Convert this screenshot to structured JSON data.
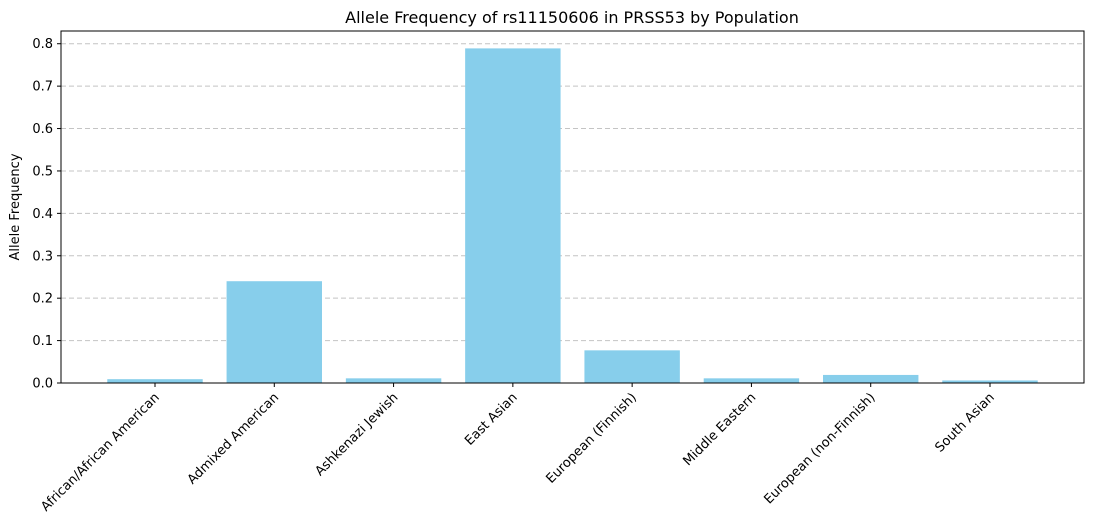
{
  "chart_data": {
    "type": "bar",
    "title": "Allele Frequency of rs11150606 in PRSS53 by Population",
    "xlabel": "",
    "ylabel": "Allele Frequency",
    "categories": [
      "African/African American",
      "Admixed American",
      "Ashkenazi Jewish",
      "East Asian",
      "European (Finnish)",
      "Middle Eastern",
      "European (non-Finnish)",
      "South Asian"
    ],
    "values": [
      0.009,
      0.24,
      0.011,
      0.789,
      0.077,
      0.011,
      0.019,
      0.006
    ],
    "ylim": [
      0,
      0.83
    ],
    "yticks": [
      0.0,
      0.1,
      0.2,
      0.3,
      0.4,
      0.5,
      0.6,
      0.7,
      0.8
    ],
    "ytick_labels": [
      "0.0",
      "0.1",
      "0.2",
      "0.3",
      "0.4",
      "0.5",
      "0.6",
      "0.7",
      "0.8"
    ],
    "bar_color": "#87ceeb",
    "grid": "y-dashed",
    "legend": "none"
  }
}
